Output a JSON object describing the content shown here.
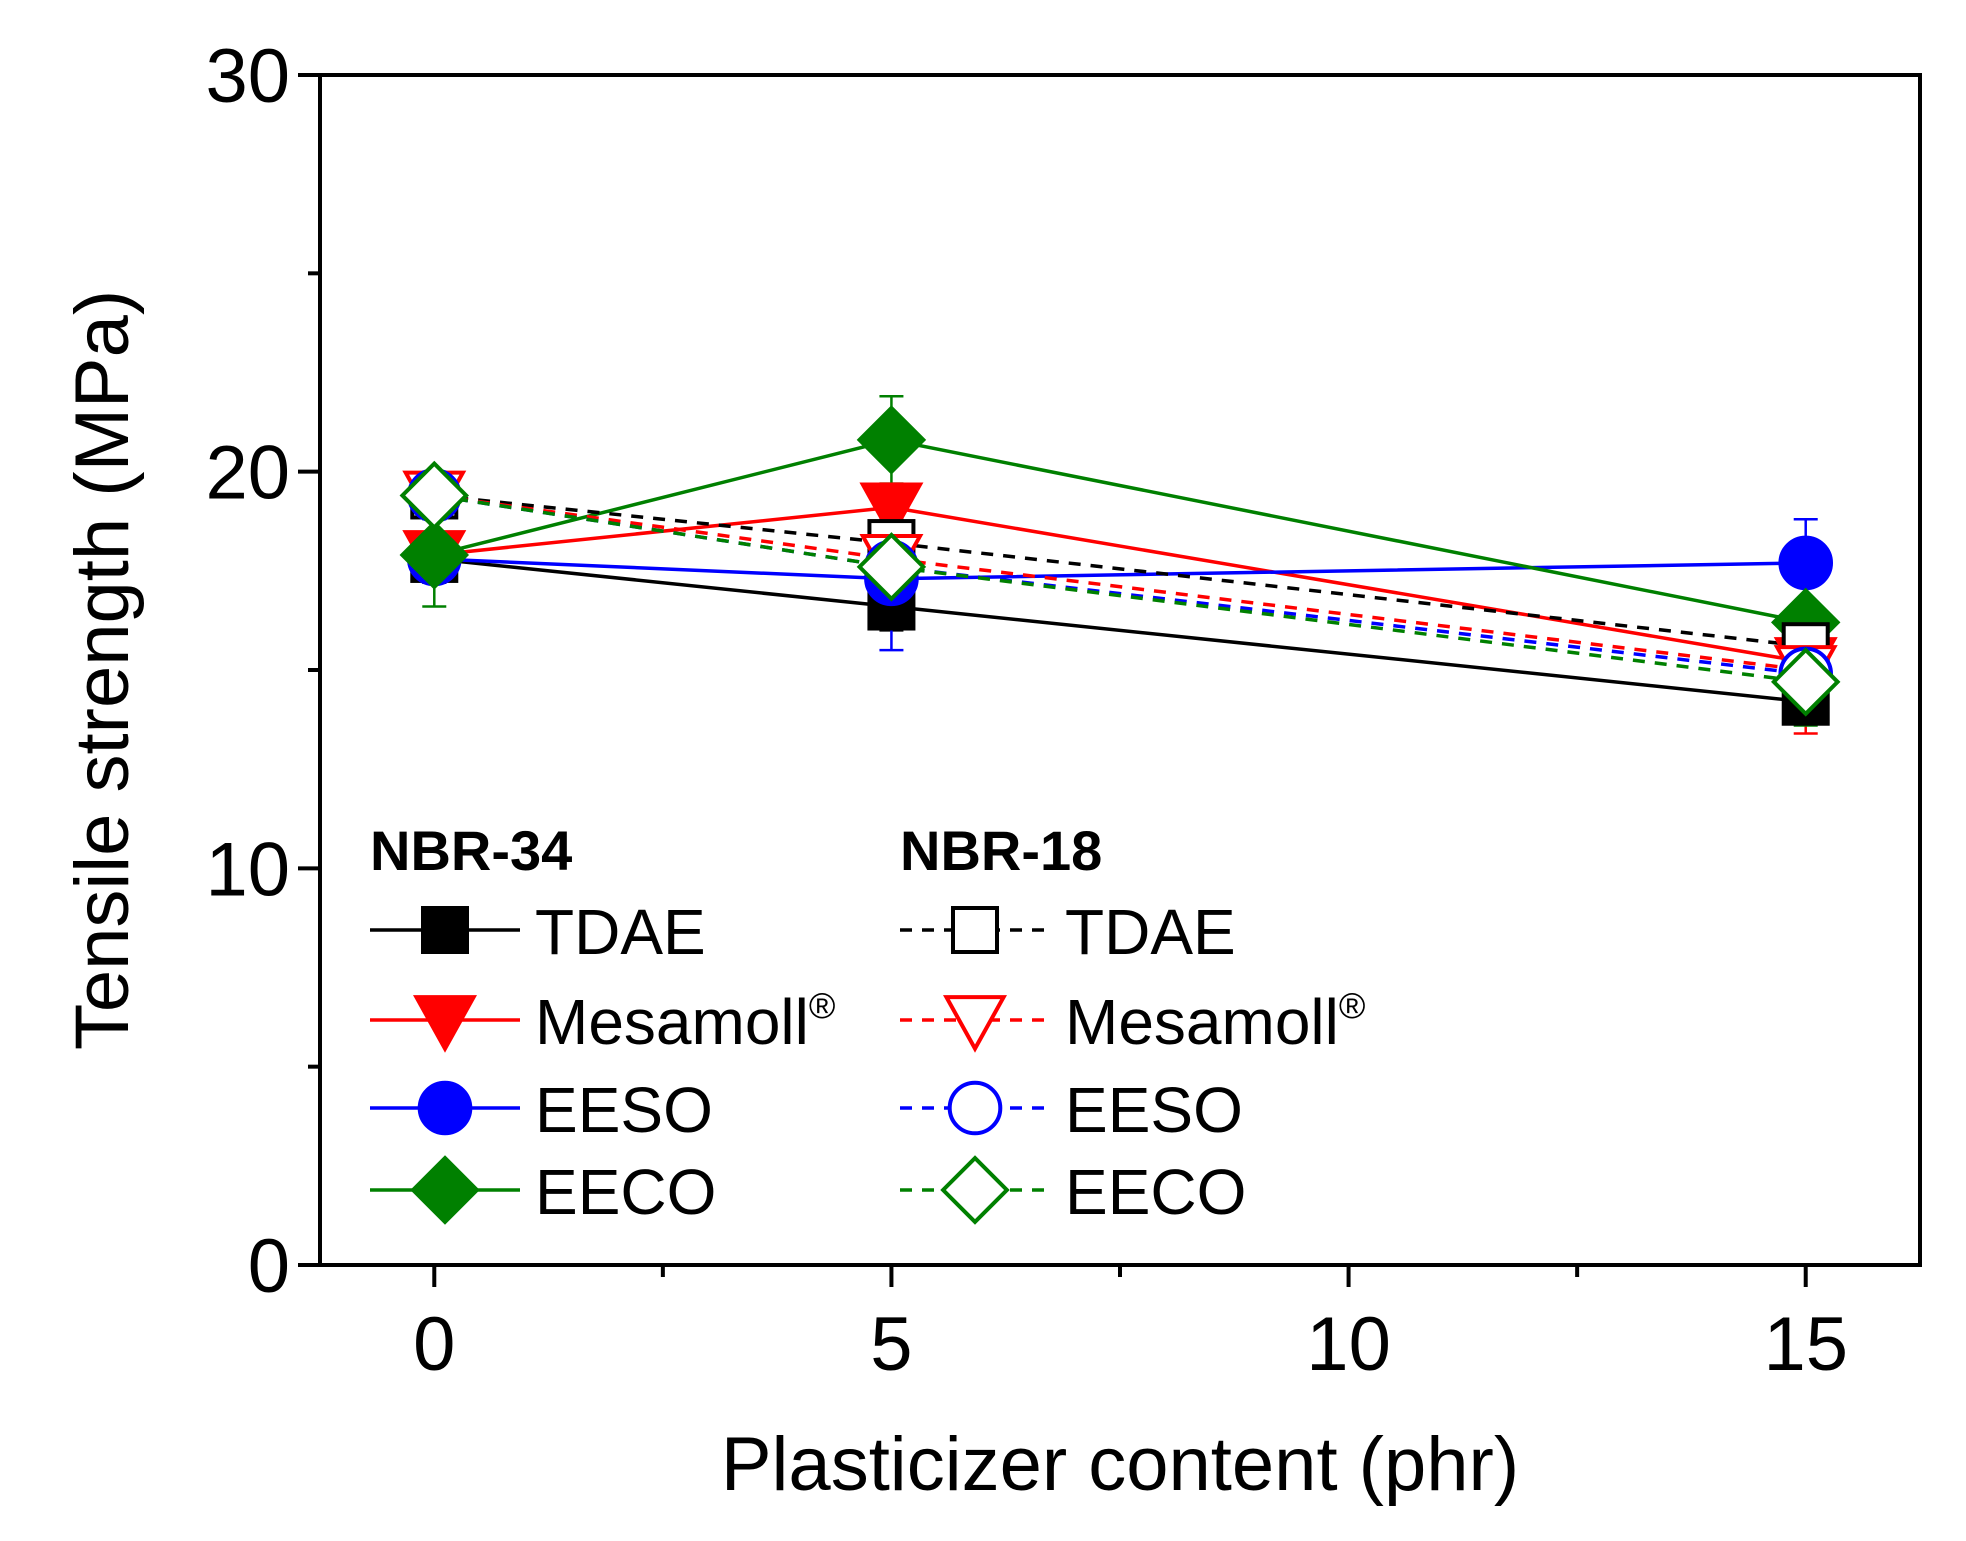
{
  "chart_data": {
    "type": "line",
    "title": "",
    "xlabel": "Plasticizer content (phr)",
    "ylabel": "Tensile strength (MPa)",
    "xlim": [
      -1.25,
      16.25
    ],
    "ylim": [
      0,
      30
    ],
    "x": [
      0,
      5,
      15
    ],
    "xticks": [
      0,
      5,
      10,
      15
    ],
    "xticks_minor": [
      2.5,
      7.5,
      12.5
    ],
    "yticks": [
      0,
      10,
      20,
      30
    ],
    "yticks_minor": [
      5,
      15,
      25
    ],
    "legend_groups": [
      {
        "title": "NBR-34",
        "position": "bottom-left"
      },
      {
        "title": "NBR-18",
        "position": "bottom-center"
      }
    ],
    "series": [
      {
        "name": "TDAE",
        "group": "NBR-34",
        "color": "#000000",
        "marker": "square",
        "filled": true,
        "dash": false,
        "values": [
          17.8,
          16.6,
          14.2
        ],
        "errors": [
          0.6,
          0.6,
          0.5
        ]
      },
      {
        "name": "Mesamoll",
        "sup": "®",
        "group": "NBR-34",
        "color": "#ff0000",
        "marker": "triangle-down",
        "filled": true,
        "dash": false,
        "values": [
          17.9,
          19.1,
          15.2
        ],
        "errors": [
          0.5,
          0.6,
          1.5
        ]
      },
      {
        "name": "EESO",
        "group": "NBR-34",
        "color": "#0000ff",
        "marker": "circle",
        "filled": true,
        "dash": false,
        "values": [
          17.8,
          17.3,
          17.7
        ],
        "errors": [
          0.5,
          1.8,
          1.1
        ]
      },
      {
        "name": "EECO",
        "group": "NBR-34",
        "color": "#008000",
        "marker": "diamond",
        "filled": true,
        "dash": false,
        "values": [
          17.9,
          20.8,
          16.2
        ],
        "errors": [
          1.3,
          1.1,
          1.0
        ]
      },
      {
        "name": "TDAE",
        "group": "NBR-18",
        "color": "#000000",
        "marker": "square",
        "filled": false,
        "dash": true,
        "values": [
          19.4,
          18.2,
          15.6
        ],
        "errors": [
          0.5,
          0.6,
          0.6
        ]
      },
      {
        "name": "Mesamoll",
        "sup": "®",
        "group": "NBR-18",
        "color": "#ff0000",
        "marker": "triangle-down",
        "filled": false,
        "dash": true,
        "values": [
          19.4,
          17.8,
          15.0
        ],
        "errors": [
          0.5,
          0.5,
          1.6
        ]
      },
      {
        "name": "EESO",
        "group": "NBR-18",
        "color": "#0000ff",
        "marker": "circle",
        "filled": false,
        "dash": true,
        "values": [
          19.4,
          17.6,
          14.9
        ],
        "errors": [
          0.5,
          0.6,
          0.7
        ]
      },
      {
        "name": "EECO",
        "group": "NBR-18",
        "color": "#008000",
        "marker": "diamond",
        "filled": false,
        "dash": true,
        "values": [
          19.4,
          17.6,
          14.7
        ],
        "errors": [
          0.6,
          0.7,
          1.1
        ]
      }
    ]
  }
}
